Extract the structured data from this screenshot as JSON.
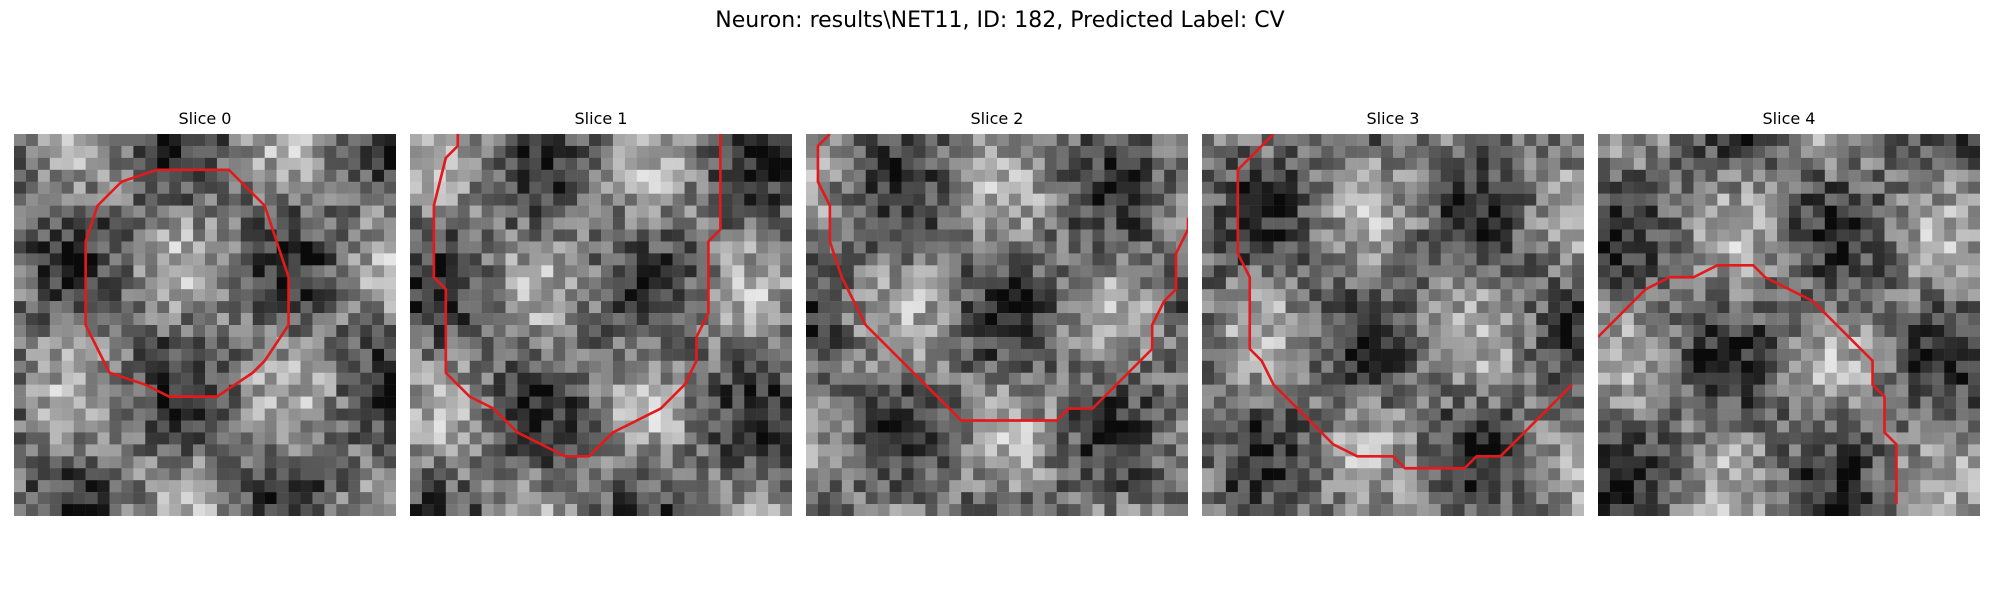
{
  "figure": {
    "title": "Neuron: results\\NET11, ID: 182, Predicted Label: CV"
  },
  "panels": [
    {
      "title": "Slice 0",
      "contour": [
        [
          12,
          3
        ],
        [
          18,
          3
        ],
        [
          21,
          6
        ],
        [
          22,
          9
        ],
        [
          23,
          12
        ],
        [
          23,
          16
        ],
        [
          21,
          19
        ],
        [
          20,
          20
        ],
        [
          17,
          22
        ],
        [
          13,
          22
        ],
        [
          11,
          21
        ],
        [
          8,
          20
        ],
        [
          7,
          18
        ],
        [
          6,
          16
        ],
        [
          6,
          9
        ],
        [
          7,
          6
        ],
        [
          9,
          4
        ],
        [
          12,
          3
        ]
      ]
    },
    {
      "title": "Slice 1",
      "contour": [
        [
          4,
          0
        ],
        [
          4,
          1
        ],
        [
          3,
          2
        ],
        [
          2,
          6
        ],
        [
          2,
          12
        ],
        [
          3,
          13
        ],
        [
          3,
          20
        ],
        [
          4,
          21
        ],
        [
          5,
          22
        ],
        [
          7,
          23
        ],
        [
          8,
          24
        ],
        [
          9,
          25
        ],
        [
          11,
          26
        ],
        [
          13,
          27
        ],
        [
          15,
          27
        ],
        [
          16,
          26
        ],
        [
          17,
          25
        ],
        [
          19,
          24
        ],
        [
          21,
          23
        ],
        [
          22,
          22
        ],
        [
          23,
          21
        ],
        [
          24,
          19
        ],
        [
          24,
          17
        ],
        [
          25,
          15
        ],
        [
          25,
          9
        ],
        [
          26,
          8
        ],
        [
          26,
          0
        ]
      ]
    },
    {
      "title": "Slice 2",
      "contour": [
        [
          2,
          0
        ],
        [
          1,
          1
        ],
        [
          1,
          4
        ],
        [
          2,
          6
        ],
        [
          2,
          9
        ],
        [
          3,
          12
        ],
        [
          4,
          14
        ],
        [
          5,
          16
        ],
        [
          6,
          17
        ],
        [
          7,
          18
        ],
        [
          8,
          19
        ],
        [
          9,
          20
        ],
        [
          10,
          21
        ],
        [
          11,
          22
        ],
        [
          12,
          23
        ],
        [
          13,
          24
        ],
        [
          16,
          24
        ],
        [
          19,
          24
        ],
        [
          21,
          24
        ],
        [
          22,
          23
        ],
        [
          24,
          23
        ],
        [
          25,
          22
        ],
        [
          26,
          21
        ],
        [
          27,
          20
        ],
        [
          28,
          19
        ],
        [
          29,
          18
        ],
        [
          29,
          16
        ],
        [
          30,
          14
        ],
        [
          31,
          13
        ],
        [
          31,
          10
        ],
        [
          32,
          8
        ],
        [
          32,
          7
        ]
      ]
    },
    {
      "title": "Slice 3",
      "contour": [
        [
          6,
          0
        ],
        [
          5,
          1
        ],
        [
          4,
          2
        ],
        [
          3,
          3
        ],
        [
          3,
          10
        ],
        [
          4,
          12
        ],
        [
          4,
          18
        ],
        [
          5,
          19
        ],
        [
          6,
          21
        ],
        [
          7,
          22
        ],
        [
          8,
          23
        ],
        [
          9,
          24
        ],
        [
          10,
          25
        ],
        [
          11,
          26
        ],
        [
          13,
          27
        ],
        [
          16,
          27
        ],
        [
          17,
          28
        ],
        [
          20,
          28
        ],
        [
          22,
          28
        ],
        [
          23,
          27
        ],
        [
          25,
          27
        ],
        [
          26,
          26
        ],
        [
          27,
          25
        ],
        [
          28,
          24
        ],
        [
          29,
          23
        ],
        [
          30,
          22
        ],
        [
          31,
          21
        ]
      ]
    },
    {
      "title": "Slice 4",
      "contour": [
        [
          0,
          17
        ],
        [
          1,
          16
        ],
        [
          2,
          15
        ],
        [
          3,
          14
        ],
        [
          4,
          13
        ],
        [
          6,
          12
        ],
        [
          8,
          12
        ],
        [
          10,
          11
        ],
        [
          12,
          11
        ],
        [
          13,
          11
        ],
        [
          14,
          12
        ],
        [
          16,
          13
        ],
        [
          18,
          14
        ],
        [
          19,
          15
        ],
        [
          20,
          16
        ],
        [
          21,
          17
        ],
        [
          22,
          18
        ],
        [
          23,
          19
        ],
        [
          23,
          21
        ],
        [
          24,
          22
        ],
        [
          24,
          25
        ],
        [
          25,
          26
        ],
        [
          25,
          28
        ],
        [
          25,
          30
        ],
        [
          25,
          31
        ]
      ]
    }
  ]
}
